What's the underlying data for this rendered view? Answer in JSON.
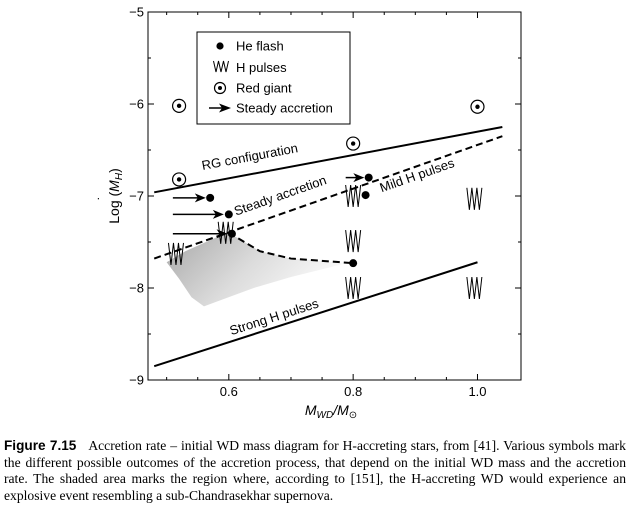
{
  "chart_data": {
    "type": "scatter",
    "xlabel_main": "M",
    "xlabel_sub1": "WD",
    "xlabel_slash": "/M",
    "xlabel_sub2": "⊙",
    "ylabel_text": "Log (",
    "ylabel_m": "M",
    "ylabel_dot": "˙",
    "ylabel_sub": "H",
    "ylabel_close": ")",
    "xlim": [
      0.47,
      1.07
    ],
    "ylim": [
      -9,
      -5
    ],
    "x_ticks": [
      0.6,
      0.8,
      1.0
    ],
    "x_tick_labels": [
      "0.6",
      "0.8",
      "1.0"
    ],
    "y_ticks": [
      -5,
      -6,
      -7,
      -8,
      -9
    ],
    "y_tick_labels": [
      "−5",
      "−6",
      "−7",
      "−8",
      "−9"
    ],
    "legend": {
      "placement": "top-center",
      "entries": [
        {
          "symbol": "he-flash",
          "label": "He flash"
        },
        {
          "symbol": "h-pulses",
          "label": "H pulses"
        },
        {
          "symbol": "red-giant",
          "label": "Red giant"
        },
        {
          "symbol": "steady-accretion",
          "label": "Steady accretion"
        }
      ]
    },
    "lines": [
      {
        "label": "RG configuration",
        "style": "solid",
        "points": [
          [
            0.48,
            -6.96
          ],
          [
            1.04,
            -6.25
          ]
        ]
      },
      {
        "label": "Steady accretion",
        "style": "dashed",
        "points": [
          [
            0.48,
            -7.68
          ],
          [
            1.04,
            -6.35
          ]
        ]
      },
      {
        "label": "Strong H pulses",
        "style": "solid",
        "points": [
          [
            0.48,
            -8.85
          ],
          [
            1.0,
            -7.72
          ]
        ]
      },
      {
        "label": "",
        "style": "dashed",
        "points": [
          [
            0.6,
            -7.4
          ],
          [
            0.65,
            -7.6
          ],
          [
            0.7,
            -7.68
          ],
          [
            0.8,
            -7.73
          ]
        ]
      }
    ],
    "line_labels": [
      {
        "text": "RG configuration",
        "x": 0.635,
        "y": -6.62
      },
      {
        "text": "Steady accretion",
        "x": 0.685,
        "y": -7.04
      },
      {
        "text": "Mild H pulses",
        "x": 0.905,
        "y": -6.82
      },
      {
        "text": "Strong H pulses",
        "x": 0.675,
        "y": -8.36
      }
    ],
    "shaded_region": [
      [
        0.6,
        -7.4
      ],
      [
        0.65,
        -7.6
      ],
      [
        0.7,
        -7.68
      ],
      [
        0.79,
        -7.73
      ],
      [
        0.7,
        -7.88
      ],
      [
        0.64,
        -8.0
      ],
      [
        0.58,
        -8.15
      ],
      [
        0.56,
        -8.2
      ],
      [
        0.54,
        -8.1
      ],
      [
        0.52,
        -7.9
      ],
      [
        0.5,
        -7.72
      ],
      [
        0.53,
        -7.6
      ],
      [
        0.58,
        -7.45
      ]
    ],
    "points": {
      "he_flash": [
        [
          0.57,
          -7.02
        ],
        [
          0.6,
          -7.2
        ],
        [
          0.605,
          -7.41
        ],
        [
          0.8,
          -7.73
        ],
        [
          0.825,
          -6.8
        ],
        [
          0.82,
          -6.99
        ]
      ],
      "h_pulses": [
        [
          0.515,
          -7.63
        ],
        [
          0.595,
          -7.4
        ],
        [
          0.8,
          -7.0
        ],
        [
          0.8,
          -7.49
        ],
        [
          0.8,
          -8.0
        ],
        [
          0.995,
          -7.03
        ],
        [
          0.995,
          -8.0
        ]
      ],
      "red_giant": [
        [
          0.52,
          -6.02
        ],
        [
          0.52,
          -6.82
        ],
        [
          0.8,
          -6.43
        ],
        [
          1.0,
          -6.03
        ]
      ],
      "steady_accretion": [
        [
          [
            0.51,
            -7.02
          ],
          [
            0.563,
            -7.02
          ]
        ],
        [
          [
            0.51,
            -7.2
          ],
          [
            0.592,
            -7.2
          ]
        ],
        [
          [
            0.51,
            -7.41
          ],
          [
            0.598,
            -7.41
          ]
        ],
        [
          [
            0.788,
            -6.8
          ],
          [
            0.818,
            -6.8
          ]
        ]
      ]
    }
  },
  "caption": {
    "label": "Figure 7.15",
    "text": "Accretion rate – initial WD mass diagram for H-accreting stars, from [41]. Various symbols mark the different possible outcomes of the accretion process, that depend on the initial WD mass and the accretion rate. The shaded area marks the region where, according to [151], the H-accreting WD would experience an explosive event resembling a sub-Chandrasekhar supernova."
  }
}
